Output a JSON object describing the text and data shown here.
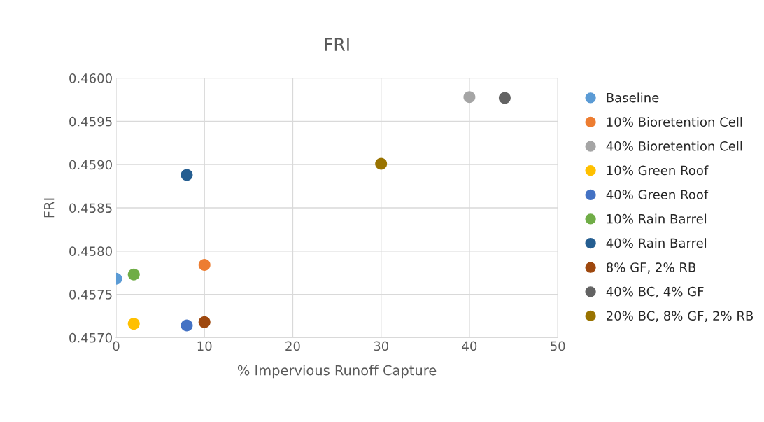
{
  "chart_data": {
    "type": "scatter",
    "title": "FRI",
    "xlabel": "% Impervious Runoff Capture",
    "ylabel": "FRI",
    "marker": "circle",
    "grid": true,
    "legend": "right",
    "xlim": [
      0,
      50
    ],
    "xticks": [
      0,
      10,
      20,
      30,
      40,
      50
    ],
    "ylim": [
      0.457,
      0.46
    ],
    "yticks": [
      {
        "value": 0.457,
        "label": "0.4570"
      },
      {
        "value": 0.4575,
        "label": "0.4575"
      },
      {
        "value": 0.458,
        "label": "0.4580"
      },
      {
        "value": 0.4585,
        "label": "0.4585"
      },
      {
        "value": 0.459,
        "label": "0.4590"
      },
      {
        "value": 0.4595,
        "label": "0.4595"
      },
      {
        "value": 0.46,
        "label": "0.4600"
      }
    ],
    "series": [
      {
        "name": "Baseline",
        "color": "#5b9bd5",
        "x": [
          0
        ],
        "values": [
          0.45768
        ]
      },
      {
        "name": "10% Bioretention Cell",
        "color": "#ed7d31",
        "x": [
          10
        ],
        "values": [
          0.45784
        ]
      },
      {
        "name": "40% Bioretention Cell",
        "color": "#a5a5a5",
        "x": [
          40
        ],
        "values": [
          0.45978
        ]
      },
      {
        "name": "10% Green Roof",
        "color": "#ffc000",
        "x": [
          2
        ],
        "values": [
          0.45716
        ]
      },
      {
        "name": "40% Green Roof",
        "color": "#4472c4",
        "x": [
          8
        ],
        "values": [
          0.45714
        ]
      },
      {
        "name": "10% Rain Barrel",
        "color": "#70ad47",
        "x": [
          2
        ],
        "values": [
          0.45773
        ]
      },
      {
        "name": "40% Rain Barrel",
        "color": "#255e91",
        "x": [
          8
        ],
        "values": [
          0.45888
        ]
      },
      {
        "name": "8% GF, 2% RB",
        "color": "#9e480e",
        "x": [
          10
        ],
        "values": [
          0.45718
        ]
      },
      {
        "name": "40% BC, 4% GF",
        "color": "#636363",
        "x": [
          44
        ],
        "values": [
          0.45977
        ]
      },
      {
        "name": "20% BC, 8% GF, 2% RB",
        "color": "#997300",
        "x": [
          30
        ],
        "values": [
          0.45901
        ]
      }
    ]
  }
}
